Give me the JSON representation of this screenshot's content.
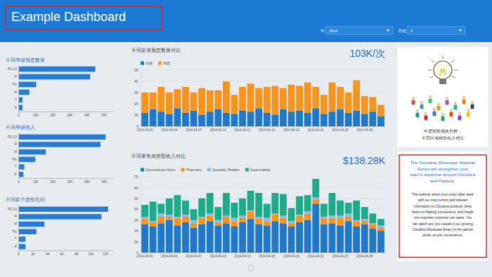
{
  "page": {
    "header": {
      "title": "Example Dashboard"
    },
    "filters": [
      {
        "label": "年",
        "value": "2014"
      },
      {
        "label": "月份",
        "value": "4"
      }
    ],
    "image_panel": {
      "caption": [
        "年度销售绩效分析，",
        "不同区域销售收入对比"
      ]
    },
    "text_panel": {
      "title_lines": [
        "The Cloudera Showcase Webinar",
        "Series will strengthen your",
        "team's expertise around Cloudera",
        "and Hadoop."
      ],
      "body_lines": [
        "This webinar series runs every other week",
        "with our most current and relevant",
        "information on Cloudera products, deep",
        "dives on Hadoop components, and insight",
        "into important customer use cases. You",
        "can watch any you missed in our growing",
        "Cloudera Showcase library on the partner",
        "portal, at your convenience."
      ]
    }
  },
  "chart_data": [
    {
      "type": "bar",
      "orientation": "horizontal",
      "title": "不同等级预定数量",
      "categories": [
        "PG-13",
        "R",
        "PG",
        "M",
        "T",
        "E"
      ],
      "values": [
        45000,
        42000,
        10500,
        6500,
        2500,
        2500
      ],
      "color": "#2a7cd3",
      "xlim": [
        0,
        55000
      ],
      "xticks": [
        0,
        {
          "value": 10000,
          "label": "10K"
        },
        {
          "value": 20000,
          "label": "20K"
        },
        {
          "value": 30000,
          "label": "30K"
        },
        {
          "value": 40000,
          "label": "40K"
        },
        {
          "value": 50000,
          "label": "50K"
        }
      ],
      "grid": false
    },
    {
      "type": "bar",
      "orientation": "horizontal",
      "title": "不同等级收入",
      "categories": [
        "PG-13",
        "R",
        "M",
        "PG",
        "T",
        "E"
      ],
      "values": [
        51000,
        48000,
        16000,
        10000,
        3500,
        3000
      ],
      "color": "#2a7cd3",
      "xlim": [
        0,
        55000
      ],
      "xticks": [
        0,
        {
          "value": 10000,
          "label": "10K"
        },
        {
          "value": 20000,
          "label": "20K"
        },
        {
          "value": 30000,
          "label": "30K"
        },
        {
          "value": 40000,
          "label": "40K"
        },
        {
          "value": 50000,
          "label": "50K"
        }
      ],
      "grid": false
    },
    {
      "type": "bar",
      "orientation": "horizontal",
      "title": "不同影片类别毛利",
      "categories": [
        "PG-13",
        "R",
        "M",
        "PG",
        "T",
        "E"
      ],
      "values": [
        12400,
        11500,
        3600,
        2500,
        1000,
        1000
      ],
      "color": "#2a7cd3",
      "xlim": [
        0,
        13000
      ],
      "xticks": [
        0,
        {
          "value": 2000,
          "label": "2K"
        },
        {
          "value": 4000,
          "label": "4K"
        },
        {
          "value": 6000,
          "label": "6K"
        },
        {
          "value": 8000,
          "label": "8K"
        },
        {
          "value": 10000,
          "label": "10K"
        },
        {
          "value": 12000,
          "label": "12K"
        }
      ],
      "grid": false
    },
    {
      "type": "bar",
      "stacked": true,
      "title": "不同渠道预定数量对比",
      "annotations": [
        "103K/次"
      ],
      "categories": [
        "2014-04-01",
        null,
        null,
        "2014-04-04",
        null,
        null,
        "2014-04-07",
        null,
        null,
        "2014-04-10",
        null,
        null,
        "2014-04-13",
        null,
        null,
        "2014-04-16",
        null,
        null,
        "2014-04-19",
        null,
        null,
        "2014-04-22",
        null,
        null,
        "2014-04-25",
        null,
        null,
        "2014-04-28",
        null,
        null
      ],
      "series": [
        {
          "name": "本期",
          "color": "#1f78c8",
          "values": [
            1200,
            1500,
            1300,
            1100,
            1600,
            1200,
            1400,
            1000,
            1300,
            1500,
            1200,
            1100,
            1400,
            1300,
            1600,
            1200,
            1000,
            1500,
            1300,
            1400,
            1200,
            1600,
            1100,
            1300,
            1500,
            1200,
            1400,
            1100,
            1300,
            900
          ]
        },
        {
          "name": "同期",
          "color": "#f7941d",
          "values": [
            1800,
            1500,
            2200,
            1900,
            1700,
            2300,
            1600,
            2400,
            1900,
            1700,
            2800,
            1700,
            2100,
            2500,
            1800,
            2300,
            2600,
            1900,
            2400,
            2200,
            2700,
            1900,
            1700,
            2600,
            2000,
            1800,
            2700,
            1600,
            1300,
            1000
          ]
        }
      ],
      "ylim": [
        0,
        5000
      ],
      "yticks": [
        0,
        {
          "value": 1000,
          "label": "1K"
        },
        {
          "value": 2000,
          "label": "2K"
        },
        {
          "value": 3000,
          "label": "3K"
        },
        {
          "value": 4000,
          "label": "4K"
        },
        {
          "value": 5000,
          "label": "5K"
        }
      ],
      "grid": true,
      "legend": "top-left"
    },
    {
      "type": "bar",
      "stacked": true,
      "title": "不同零售商类型收入对比",
      "annotations": [
        "$138.28K"
      ],
      "categories": [
        "2014-04-01",
        null,
        null,
        "2014-04-04",
        null,
        null,
        "2014-04-07",
        null,
        null,
        "2014-04-10",
        null,
        null,
        "2014-04-13",
        null,
        null,
        "2014-04-16",
        null,
        null,
        "2014-04-19",
        null,
        null,
        "2014-04-22",
        null,
        null,
        "2014-04-25",
        null,
        null,
        "2014-04-28",
        null,
        null
      ],
      "series": [
        {
          "name": "Convenience Store",
          "color": "#1f78c8",
          "values": [
            2600,
            2400,
            2700,
            3000,
            2500,
            2800,
            2300,
            2600,
            2900,
            2500,
            2700,
            2400,
            2800,
            3100,
            2600,
            2500,
            2900,
            2700,
            2400,
            2800,
            3000,
            4500,
            2600,
            2700,
            2500,
            2900,
            2400,
            2600,
            2200,
            2000
          ]
        },
        {
          "name": "Pharmacy",
          "color": "#f7941d",
          "values": [
            500,
            400,
            600,
            300,
            700,
            500,
            400,
            600,
            500,
            300,
            600,
            500,
            400,
            700,
            500,
            400,
            600,
            500,
            300,
            600,
            500,
            400,
            600,
            500,
            700,
            400,
            500,
            300,
            400,
            300
          ]
        },
        {
          "name": "Specialty Retailer",
          "color": "#8db9e3",
          "values": [
            200,
            100,
            300,
            200,
            100,
            200,
            300,
            100,
            200,
            200,
            100,
            300,
            200,
            100,
            200,
            300,
            100,
            200,
            200,
            100,
            300,
            200,
            100,
            200,
            200,
            300,
            100,
            200,
            100,
            200
          ]
        },
        {
          "name": "Supermarket",
          "color": "#1eab8c",
          "values": [
            1100,
            1800,
            900,
            1500,
            2000,
            1300,
            1000,
            1700,
            1900,
            1200,
            2100,
            1400,
            1600,
            1800,
            2200,
            1300,
            1900,
            2000,
            1200,
            1700,
            1500,
            1700,
            1200,
            2100,
            1400,
            1000,
            1800,
            1100,
            900,
            600
          ]
        }
      ],
      "ylim": [
        0,
        7000
      ],
      "yticks": [
        0,
        {
          "value": 1000,
          "label": "1K"
        },
        {
          "value": 2000,
          "label": "2K"
        },
        {
          "value": 3000,
          "label": "3K"
        },
        {
          "value": 4000,
          "label": "4K"
        },
        {
          "value": 5000,
          "label": "5K"
        },
        {
          "value": 6000,
          "label": "6K"
        },
        {
          "value": 7000,
          "label": "7K"
        }
      ],
      "grid": true,
      "legend": "top-left"
    }
  ]
}
